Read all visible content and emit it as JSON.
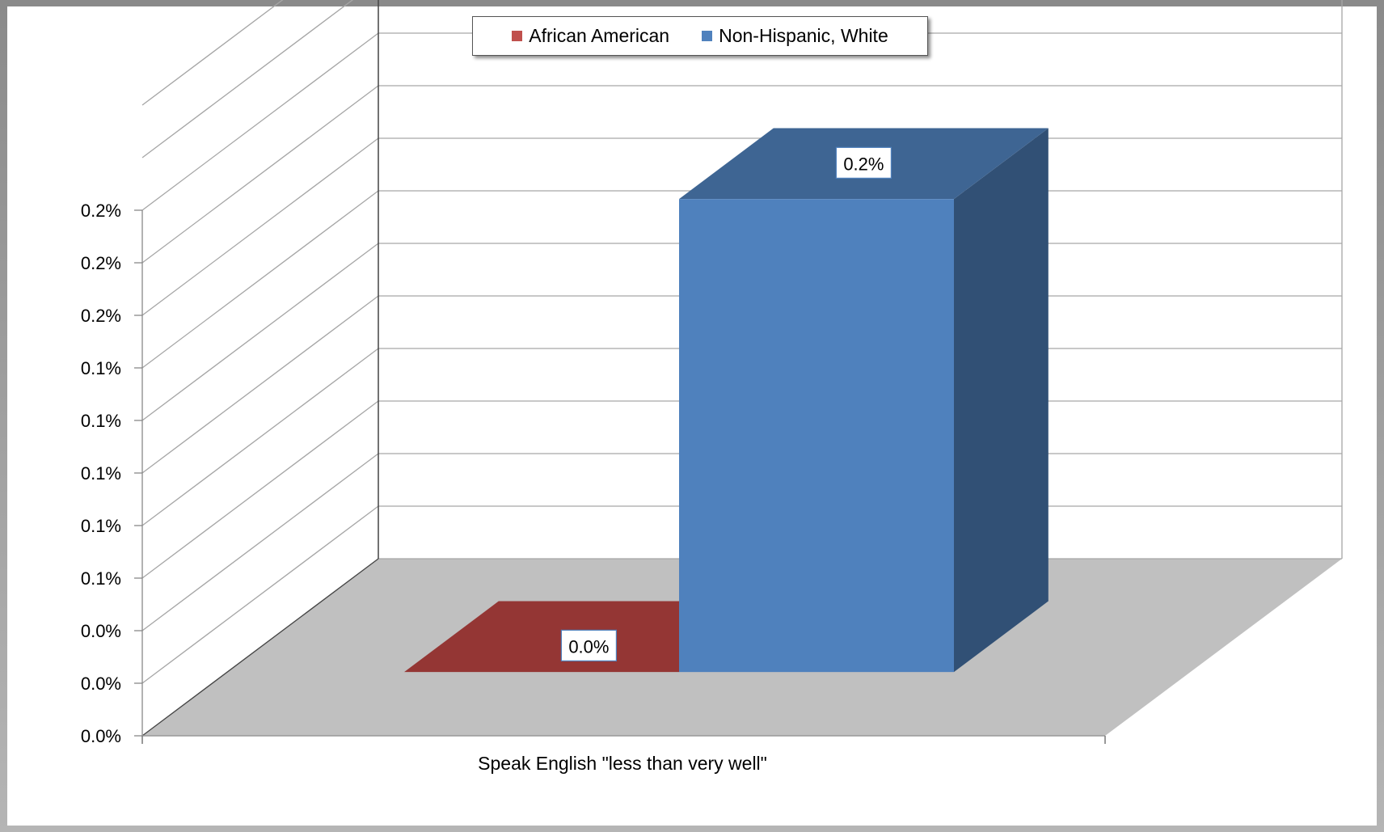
{
  "chart_data": {
    "type": "bar",
    "title": "",
    "categories": [
      "Speak English \"less than very well\""
    ],
    "xlabel": "",
    "ylabel": "",
    "ylim": [
      0,
      0.2
    ],
    "y_tick_labels": [
      "0.0%",
      "0.0%",
      "0.0%",
      "0.1%",
      "0.1%",
      "0.1%",
      "0.1%",
      "0.1%",
      "0.2%",
      "0.2%",
      "0.2%"
    ],
    "series": [
      {
        "name": "African American",
        "values": [
          0.0
        ],
        "label": "0.0%",
        "color": "#943634"
      },
      {
        "name": "Non-Hispanic, White",
        "values": [
          0.18
        ],
        "label": "0.2%",
        "color": "#4f81bd"
      }
    ],
    "legend_position": "top-center",
    "grid": true
  }
}
